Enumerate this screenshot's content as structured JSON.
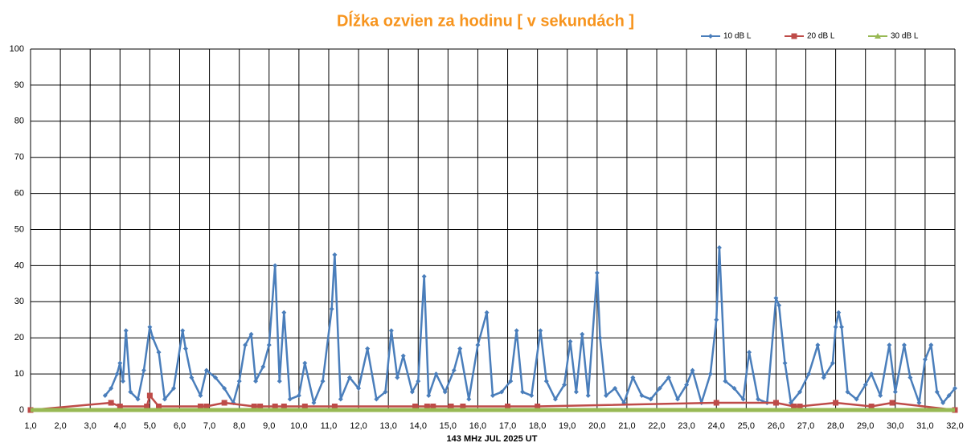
{
  "chart_data": {
    "type": "line",
    "title": "Dĺžka ozvien za hodinu [ v sekundách ]",
    "x_label": "143 MHz JUL  2025  UT",
    "legend": "top-right",
    "grid": true,
    "xlim": [
      1,
      32
    ],
    "ylim": [
      0,
      100
    ],
    "yticks": [
      0,
      10,
      20,
      30,
      40,
      50,
      60,
      70,
      80,
      90,
      100
    ],
    "xticks": [
      {
        "value": 1,
        "label": "1,0"
      },
      {
        "value": 2,
        "label": "2,0"
      },
      {
        "value": 3,
        "label": "3,0"
      },
      {
        "value": 4,
        "label": "4,0"
      },
      {
        "value": 5,
        "label": "5,0"
      },
      {
        "value": 6,
        "label": "6,0"
      },
      {
        "value": 7,
        "label": "7,0"
      },
      {
        "value": 8,
        "label": "8,0"
      },
      {
        "value": 9,
        "label": "9,0"
      },
      {
        "value": 10,
        "label": "10,0"
      },
      {
        "value": 11,
        "label": "11,0"
      },
      {
        "value": 12,
        "label": "12,0"
      },
      {
        "value": 13,
        "label": "13,0"
      },
      {
        "value": 14,
        "label": "14,0"
      },
      {
        "value": 15,
        "label": "15,0"
      },
      {
        "value": 16,
        "label": "16,0"
      },
      {
        "value": 17,
        "label": "17,0"
      },
      {
        "value": 18,
        "label": "18,0"
      },
      {
        "value": 19,
        "label": "19,0"
      },
      {
        "value": 20,
        "label": "20,0"
      },
      {
        "value": 21,
        "label": "21,0"
      },
      {
        "value": 22,
        "label": "22,0"
      },
      {
        "value": 23,
        "label": "23,0"
      },
      {
        "value": 24,
        "label": "24,0"
      },
      {
        "value": 25,
        "label": "25,0"
      },
      {
        "value": 26,
        "label": "26,0"
      },
      {
        "value": 27,
        "label": "27,0"
      },
      {
        "value": 28,
        "label": "28,0"
      },
      {
        "value": 29,
        "label": "29,0"
      },
      {
        "value": 30,
        "label": "30,0"
      },
      {
        "value": 31,
        "label": "31,0"
      },
      {
        "value": 32,
        "label": "32,0"
      }
    ],
    "series": [
      {
        "name": "10 dB L",
        "color": "#4a7ebb",
        "marker": "diamond",
        "x": [
          3.5,
          3.7,
          3.9,
          4.0,
          4.1,
          4.2,
          4.35,
          4.6,
          4.8,
          5.0,
          5.1,
          5.3,
          5.5,
          5.8,
          6.1,
          6.2,
          6.4,
          6.7,
          6.9,
          7.2,
          7.5,
          7.8,
          8.0,
          8.2,
          8.4,
          8.55,
          8.8,
          9.0,
          9.2,
          9.35,
          9.5,
          9.7,
          10.0,
          10.2,
          10.5,
          10.8,
          11.1,
          11.2,
          11.4,
          11.7,
          12.0,
          12.3,
          12.6,
          12.9,
          13.1,
          13.3,
          13.5,
          13.8,
          14.0,
          14.2,
          14.35,
          14.6,
          14.9,
          15.2,
          15.4,
          15.7,
          16.0,
          16.3,
          16.5,
          16.8,
          17.1,
          17.3,
          17.5,
          17.8,
          18.1,
          18.3,
          18.6,
          18.9,
          19.1,
          19.3,
          19.5,
          19.7,
          20.0,
          20.1,
          20.3,
          20.6,
          20.9,
          21.2,
          21.5,
          21.8,
          22.1,
          22.4,
          22.7,
          23.0,
          23.2,
          23.5,
          23.8,
          24.0,
          24.1,
          24.3,
          24.6,
          24.9,
          25.1,
          25.4,
          25.7,
          26.0,
          26.1,
          26.3,
          26.5,
          26.8,
          27.1,
          27.4,
          27.6,
          27.9,
          28.0,
          28.1,
          28.2,
          28.4,
          28.7,
          29.0,
          29.2,
          29.5,
          29.8,
          30.0,
          30.3,
          30.5,
          30.8,
          31.0,
          31.2,
          31.4,
          31.6,
          31.8,
          32.0
        ],
        "values": [
          4,
          6,
          10,
          13,
          8,
          22,
          5,
          3,
          11,
          23,
          20,
          16,
          3,
          6,
          22,
          17,
          9,
          4,
          11,
          9,
          6,
          2,
          8,
          18,
          21,
          8,
          12,
          18,
          40,
          8,
          27,
          3,
          4,
          13,
          2,
          8,
          28,
          43,
          3,
          9,
          6,
          17,
          3,
          5,
          22,
          9,
          15,
          5,
          8,
          37,
          4,
          10,
          5,
          11,
          17,
          3,
          18,
          27,
          4,
          5,
          8,
          22,
          5,
          4,
          22,
          8,
          3,
          7,
          19,
          5,
          21,
          4,
          38,
          20,
          4,
          6,
          2,
          9,
          4,
          3,
          6,
          9,
          3,
          7,
          11,
          2,
          10,
          25,
          45,
          8,
          6,
          3,
          16,
          3,
          2,
          31,
          29,
          13,
          2,
          5,
          10,
          18,
          9,
          13,
          23,
          27,
          23,
          5,
          3,
          7,
          10,
          4,
          18,
          5,
          18,
          9,
          2,
          14,
          18,
          5,
          2,
          4,
          6
        ]
      },
      {
        "name": "20 dB L",
        "color": "#be4b48",
        "marker": "square",
        "x": [
          1.0,
          3.7,
          4.0,
          4.9,
          5.0,
          5.3,
          6.7,
          6.9,
          7.5,
          8.5,
          8.7,
          9.2,
          9.5,
          10.2,
          11.2,
          13.9,
          14.3,
          14.5,
          15.1,
          15.5,
          17.0,
          18.0,
          24.0,
          26.0,
          26.6,
          26.8,
          28.0,
          29.2,
          29.9,
          32.0
        ],
        "values": [
          0,
          2,
          1,
          1,
          4,
          1,
          1,
          1,
          2,
          1,
          1,
          1,
          1,
          1,
          1,
          1,
          1,
          1,
          1,
          1,
          1,
          1,
          2,
          2,
          1,
          1,
          2,
          1,
          2,
          0
        ]
      },
      {
        "name": "30 dB L",
        "color": "#98b954",
        "marker": "triangle",
        "x": [
          1.0,
          32.0
        ],
        "values": [
          0,
          0
        ]
      }
    ]
  }
}
